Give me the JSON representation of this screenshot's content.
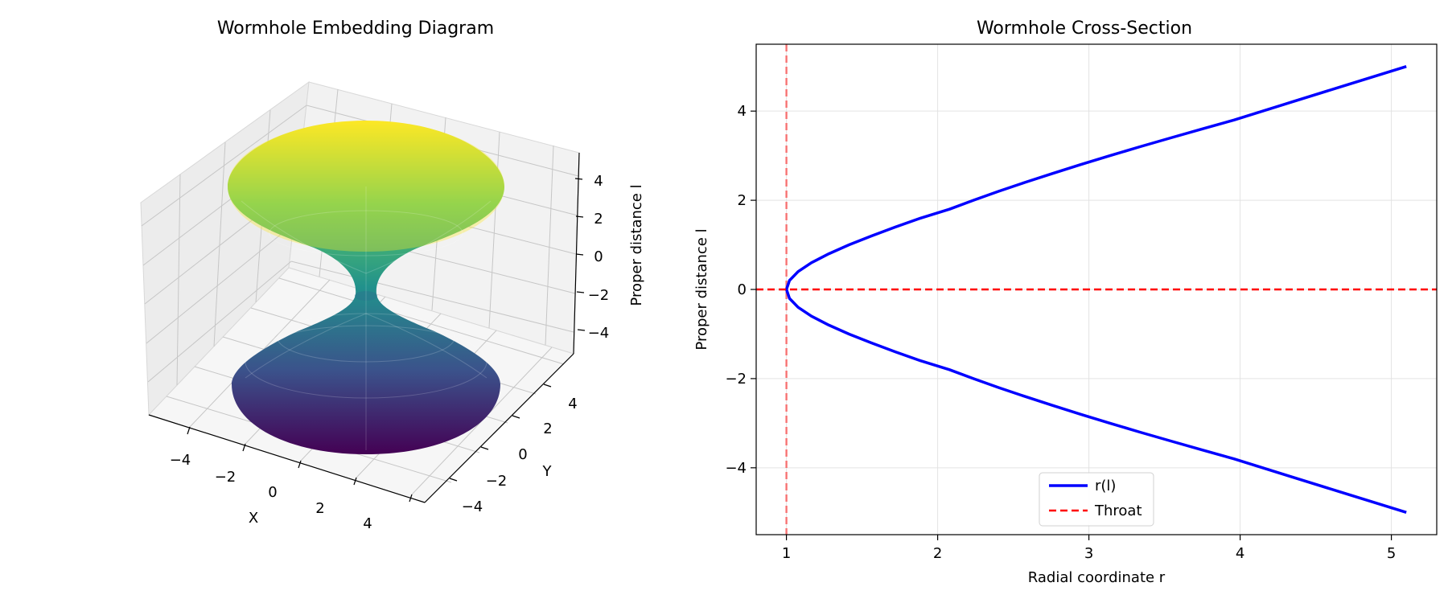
{
  "chart_data": [
    {
      "type": "surface3d",
      "title": "Wormhole Embedding Diagram",
      "xlabel": "X",
      "ylabel": "Y",
      "zlabel": "Proper distance l",
      "xticks": [
        -4,
        -2,
        0,
        2,
        4
      ],
      "yticks": [
        -4,
        -2,
        0,
        2,
        4
      ],
      "zticks": [
        4,
        2,
        0,
        -2,
        -4
      ],
      "xlim": [
        -5.1,
        5.1
      ],
      "ylim": [
        -5.1,
        5.1
      ],
      "zlim": [
        -5,
        5
      ],
      "throat_radius": 1,
      "surface": "r = sqrt(b0^2 + l^2)",
      "colormap": "viridis",
      "colormap_stops": [
        "#440154",
        "#3b528b",
        "#21918c",
        "#5ec962",
        "#fde725"
      ]
    },
    {
      "type": "line",
      "title": "Wormhole Cross-Section",
      "xlabel": "Radial coordinate r",
      "ylabel": "Proper distance l",
      "xlim": [
        0.8,
        5.3
      ],
      "ylim": [
        -5.5,
        5.5
      ],
      "xticks": [
        1,
        2,
        3,
        4,
        5
      ],
      "yticks": [
        -4,
        -2,
        0,
        2,
        4
      ],
      "grid": true,
      "legend_position": "lower-center",
      "series": [
        {
          "name": "r(l)",
          "color": "#0000ff",
          "style": "solid",
          "points": [
            [
              5.099,
              -5.0
            ],
            [
              4.717,
              -4.6
            ],
            [
              4.338,
              -4.2
            ],
            [
              3.959,
              -3.8
            ],
            [
              3.748,
              -3.6
            ],
            [
              3.541,
              -3.4
            ],
            [
              3.338,
              -3.2
            ],
            [
              3.14,
              -3.0
            ],
            [
              2.946,
              -2.8
            ],
            [
              2.759,
              -2.6
            ],
            [
              2.577,
              -2.4
            ],
            [
              2.402,
              -2.2
            ],
            [
              2.236,
              -2.0
            ],
            [
              2.078,
              -1.8
            ],
            [
              1.887,
              -1.6
            ],
            [
              1.72,
              -1.4
            ],
            [
              1.562,
              -1.2
            ],
            [
              1.414,
              -1.0
            ],
            [
              1.281,
              -0.8
            ],
            [
              1.166,
              -0.6
            ],
            [
              1.077,
              -0.4
            ],
            [
              1.02,
              -0.2
            ],
            [
              1.0,
              0.0
            ],
            [
              1.02,
              0.2
            ],
            [
              1.077,
              0.4
            ],
            [
              1.166,
              0.6
            ],
            [
              1.281,
              0.8
            ],
            [
              1.414,
              1.0
            ],
            [
              1.562,
              1.2
            ],
            [
              1.72,
              1.4
            ],
            [
              1.887,
              1.6
            ],
            [
              2.078,
              1.8
            ],
            [
              2.236,
              2.0
            ],
            [
              2.402,
              2.2
            ],
            [
              2.577,
              2.4
            ],
            [
              2.759,
              2.6
            ],
            [
              2.946,
              2.8
            ],
            [
              3.14,
              3.0
            ],
            [
              3.338,
              3.2
            ],
            [
              3.541,
              3.4
            ],
            [
              3.748,
              3.6
            ],
            [
              3.959,
              3.8
            ],
            [
              4.338,
              4.2
            ],
            [
              4.717,
              4.6
            ],
            [
              5.099,
              5.0
            ]
          ]
        },
        {
          "name": "Throat",
          "color": "#ff0000",
          "style": "dashed",
          "orientation": "horizontal",
          "value": 0
        }
      ],
      "annotations": [
        {
          "type": "vline",
          "x": 1,
          "color": "#ff0000",
          "alpha": 0.5,
          "style": "dashed"
        }
      ]
    }
  ]
}
